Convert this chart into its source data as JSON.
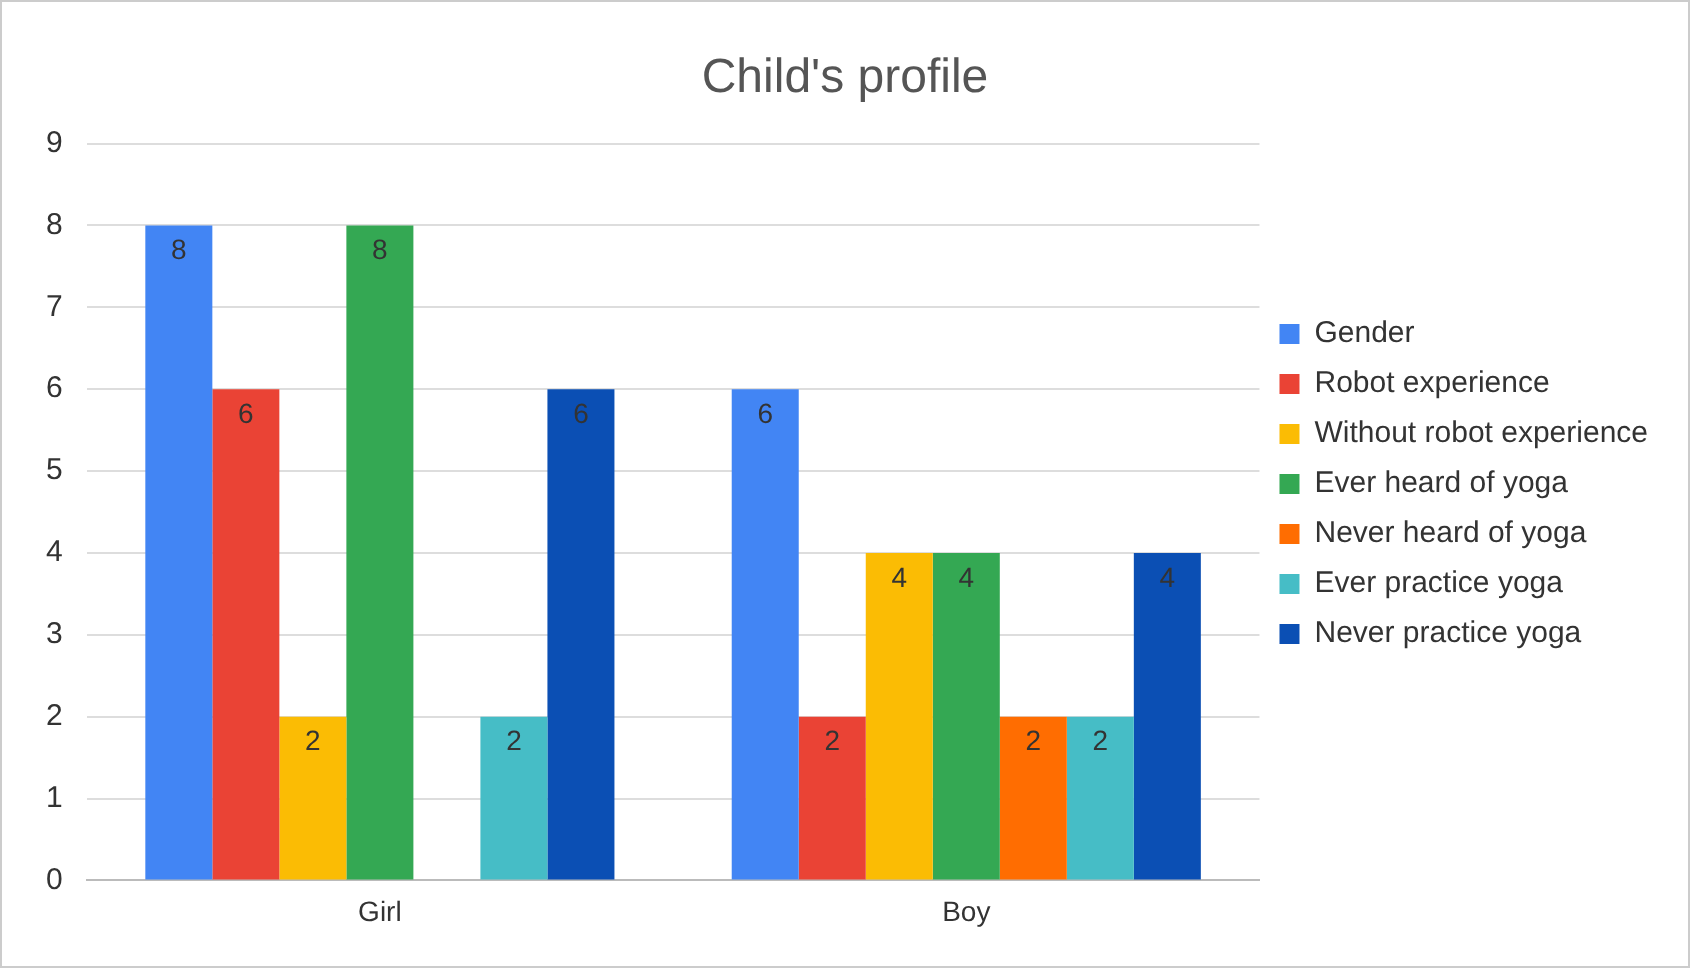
{
  "chart_data": {
    "type": "bar",
    "title": "Child's profile",
    "categories": [
      "Girl",
      "Boy"
    ],
    "series": [
      {
        "name": "Gender",
        "color": "#4285f4",
        "values": [
          8,
          6
        ],
        "value_labels": [
          "8",
          "6"
        ]
      },
      {
        "name": "Robot experience",
        "color": "#ea4335",
        "values": [
          6,
          2
        ],
        "value_labels": [
          "6",
          "2"
        ]
      },
      {
        "name": "Without robot experience",
        "color": "#fbbc04",
        "values": [
          2,
          4
        ],
        "value_labels": [
          "2",
          "4"
        ]
      },
      {
        "name": "Ever heard of yoga",
        "color": "#34a853",
        "values": [
          8,
          4
        ],
        "value_labels": [
          "8",
          "4"
        ]
      },
      {
        "name": "Never heard of yoga",
        "color": "#ff6d01",
        "values": [
          0,
          2
        ],
        "value_labels": [
          null,
          "2"
        ]
      },
      {
        "name": "Ever practice yoga",
        "color": "#46bdc6",
        "values": [
          2,
          2
        ],
        "value_labels": [
          "2",
          "2"
        ]
      },
      {
        "name": "Never practice yoga",
        "color": "#0b4fb4",
        "values": [
          6,
          4
        ],
        "value_labels": [
          "6",
          "4"
        ]
      }
    ],
    "ylim": [
      0,
      9
    ],
    "yticks": [
      0,
      1,
      2,
      3,
      4,
      5,
      6,
      7,
      8,
      9
    ],
    "grid": "y",
    "legend": "right"
  }
}
